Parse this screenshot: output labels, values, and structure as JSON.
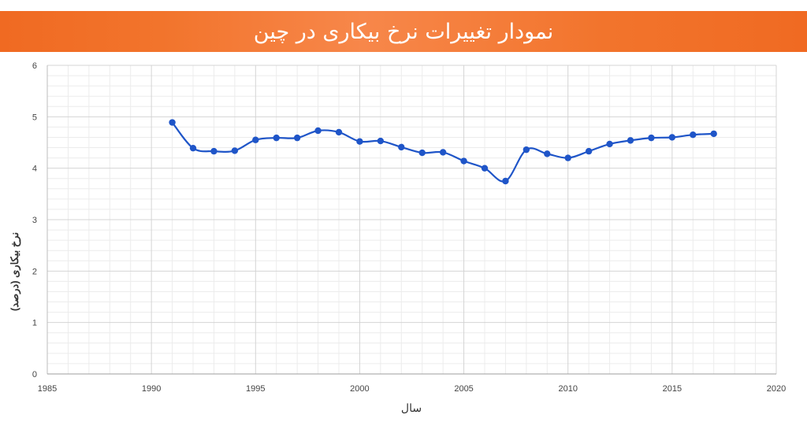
{
  "header": {
    "title": "نمودار تغییرات نرخ بیکاری در چین"
  },
  "colors": {
    "banner": "#f06a22",
    "series": "#1f55c8",
    "grid_major": "#d4d4d4",
    "grid_minor": "#ececec"
  },
  "chart_data": {
    "type": "line",
    "title": "",
    "xlabel": "سال",
    "ylabel": "نرخ بیکاری (درصد)",
    "xlim": [
      1985,
      2020
    ],
    "ylim": [
      0,
      6
    ],
    "x_ticks": [
      1985,
      1990,
      1995,
      2000,
      2005,
      2010,
      2015,
      2020
    ],
    "y_ticks": [
      0,
      1,
      2,
      3,
      4,
      5,
      6
    ],
    "grid": true,
    "legend": "none",
    "series": [
      {
        "x": [
          1991,
          1992,
          1993,
          1994,
          1995,
          1996,
          1997,
          1998,
          1999,
          2000,
          2001,
          2002,
          2003,
          2004,
          2005,
          2006,
          2007,
          2008,
          2009,
          2010,
          2011,
          2012,
          2013,
          2014,
          2015,
          2016,
          2017
        ],
        "y": [
          4.89,
          4.39,
          4.33,
          4.34,
          4.55,
          4.59,
          4.59,
          4.73,
          4.7,
          4.52,
          4.53,
          4.41,
          4.3,
          4.31,
          4.14,
          4.0,
          3.75,
          4.36,
          4.28,
          4.2,
          4.33,
          4.47,
          4.54,
          4.59,
          4.6,
          4.65,
          4.67
        ]
      }
    ]
  }
}
